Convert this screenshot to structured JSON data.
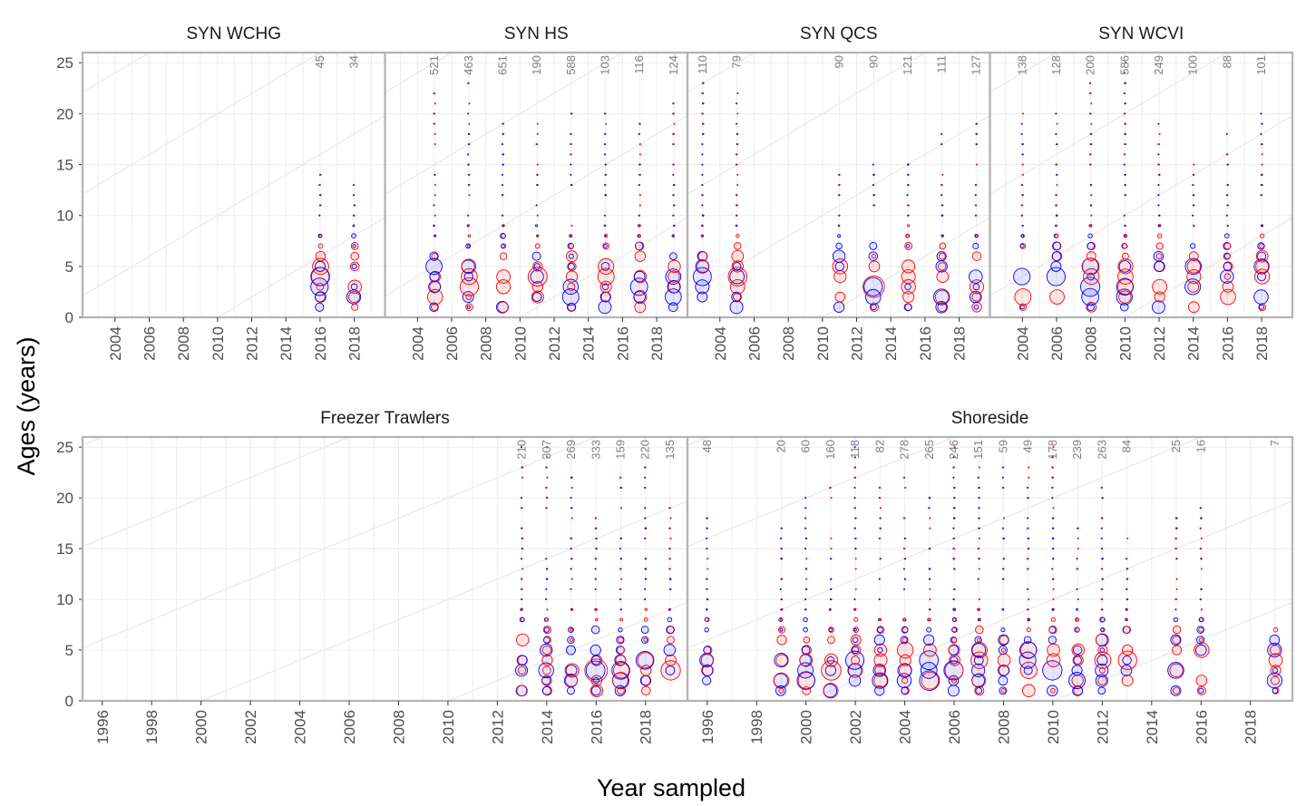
{
  "chart_data": {
    "type": "scatter",
    "xlabel": "Year sampled",
    "ylabel": "Ages (years)",
    "ylim": [
      0,
      26
    ],
    "grid": true,
    "colors": {
      "female": "#ff0000",
      "male": "#0000ff",
      "panel_border": "#b3b3b3",
      "grid": "#ececec",
      "count_text": "#7f7f7f"
    },
    "rows": [
      {
        "row": "top",
        "xlim": [
          2002.1,
          2019.8
        ],
        "yticks": [
          0,
          5,
          10,
          15,
          20,
          25
        ],
        "panels": [
          {
            "name": "SYN WCHG",
            "xticks": [
              "2004",
              "2006",
              "2008",
              "2010",
              "2012",
              "2014",
              "2016",
              "2018"
            ],
            "samples": [
              {
                "year": 2016,
                "n": "45"
              },
              {
                "year": 2018,
                "n": "34"
              }
            ],
            "max_age": {
              "2016": 14,
              "2018": 13
            }
          },
          {
            "name": "SYN HS",
            "xticks": [
              "2004",
              "2006",
              "2008",
              "2010",
              "2012",
              "2014",
              "2016",
              "2018"
            ],
            "samples": [
              {
                "year": 2005,
                "n": "521"
              },
              {
                "year": 2007,
                "n": "463"
              },
              {
                "year": 2009,
                "n": "651"
              },
              {
                "year": 2011,
                "n": "190"
              },
              {
                "year": 2013,
                "n": "588"
              },
              {
                "year": 2015,
                "n": "103"
              },
              {
                "year": 2017,
                "n": "116"
              },
              {
                "year": 2019,
                "n": "124"
              }
            ],
            "max_age": {
              "2005": 23,
              "2007": 23,
              "2009": 19,
              "2011": 19,
              "2013": 20,
              "2015": 20,
              "2017": 19,
              "2019": 21
            }
          },
          {
            "name": "SYN QCS",
            "xticks": [
              "2004",
              "2006",
              "2008",
              "2010",
              "2012",
              "2014",
              "2016",
              "2018"
            ],
            "samples": [
              {
                "year": 2003,
                "n": "110"
              },
              {
                "year": 2005,
                "n": "79"
              },
              {
                "year": 2011,
                "n": "90"
              },
              {
                "year": 2013,
                "n": "90"
              },
              {
                "year": 2015,
                "n": "121"
              },
              {
                "year": 2017,
                "n": "111"
              },
              {
                "year": 2019,
                "n": "127"
              }
            ],
            "max_age": {
              "2003": 23,
              "2005": 22,
              "2011": 14,
              "2013": 15,
              "2015": 15,
              "2017": 18,
              "2019": 19
            }
          },
          {
            "name": "SYN WCVI",
            "xticks": [
              "2004",
              "2006",
              "2008",
              "2010",
              "2012",
              "2014",
              "2016",
              "2018"
            ],
            "samples": [
              {
                "year": 2004,
                "n": "138"
              },
              {
                "year": 2006,
                "n": "128"
              },
              {
                "year": 2008,
                "n": "200"
              },
              {
                "year": 2010,
                "n": "586"
              },
              {
                "year": 2012,
                "n": "249"
              },
              {
                "year": 2014,
                "n": "100"
              },
              {
                "year": 2016,
                "n": "88"
              },
              {
                "year": 2018,
                "n": "101"
              }
            ],
            "max_age": {
              "2004": 20,
              "2006": 20,
              "2008": 23,
              "2010": 25,
              "2012": 19,
              "2014": 15,
              "2016": 18,
              "2018": 20
            }
          }
        ]
      },
      {
        "row": "bottom",
        "xlim": [
          1995.2,
          2019.7
        ],
        "yticks": [
          0,
          5,
          10,
          15,
          20,
          25
        ],
        "panels": [
          {
            "name": "Freezer Trawlers",
            "xticks": [
              "1996",
              "1998",
              "2000",
              "2002",
              "2004",
              "2006",
              "2008",
              "2010",
              "2012",
              "2014",
              "2016",
              "2018"
            ],
            "samples": [
              {
                "year": 2013,
                "n": "210"
              },
              {
                "year": 2014,
                "n": "307"
              },
              {
                "year": 2015,
                "n": "269"
              },
              {
                "year": 2016,
                "n": "333"
              },
              {
                "year": 2017,
                "n": "159"
              },
              {
                "year": 2018,
                "n": "220"
              },
              {
                "year": 2019,
                "n": "135"
              }
            ],
            "max_age": {
              "2013": 25,
              "2014": 25,
              "2015": 22,
              "2016": 18,
              "2017": 22,
              "2018": 23,
              "2019": 20
            }
          },
          {
            "name": "Shoreside",
            "xticks": [
              "1996",
              "1998",
              "2000",
              "2002",
              "2004",
              "2006",
              "2008",
              "2010",
              "2012",
              "2014",
              "2016",
              "2018"
            ],
            "samples": [
              {
                "year": 1996,
                "n": "48"
              },
              {
                "year": 1999,
                "n": "20"
              },
              {
                "year": 2000,
                "n": "60"
              },
              {
                "year": 2001,
                "n": "160"
              },
              {
                "year": 2002,
                "n": "118"
              },
              {
                "year": 2003,
                "n": "82"
              },
              {
                "year": 2004,
                "n": "278"
              },
              {
                "year": 2005,
                "n": "265"
              },
              {
                "year": 2006,
                "n": "246"
              },
              {
                "year": 2007,
                "n": "151"
              },
              {
                "year": 2008,
                "n": "59"
              },
              {
                "year": 2009,
                "n": "49"
              },
              {
                "year": 2010,
                "n": "178"
              },
              {
                "year": 2011,
                "n": "239"
              },
              {
                "year": 2012,
                "n": "263"
              },
              {
                "year": 2013,
                "n": "84"
              },
              {
                "year": 2015,
                "n": "25"
              },
              {
                "year": 2016,
                "n": "16"
              },
              {
                "year": 2019,
                "n": "7"
              }
            ],
            "max_age": {
              "1996": 18,
              "1999": 17,
              "2000": 20,
              "2001": 21,
              "2002": 26,
              "2003": 23,
              "2004": 22,
              "2005": 21,
              "2006": 25,
              "2007": 23,
              "2008": 23,
              "2009": 23,
              "2010": 25,
              "2011": 17,
              "2012": 21,
              "2013": 16,
              "2015": 18,
              "2016": 19,
              "2019": 7
            }
          }
        ]
      }
    ]
  }
}
